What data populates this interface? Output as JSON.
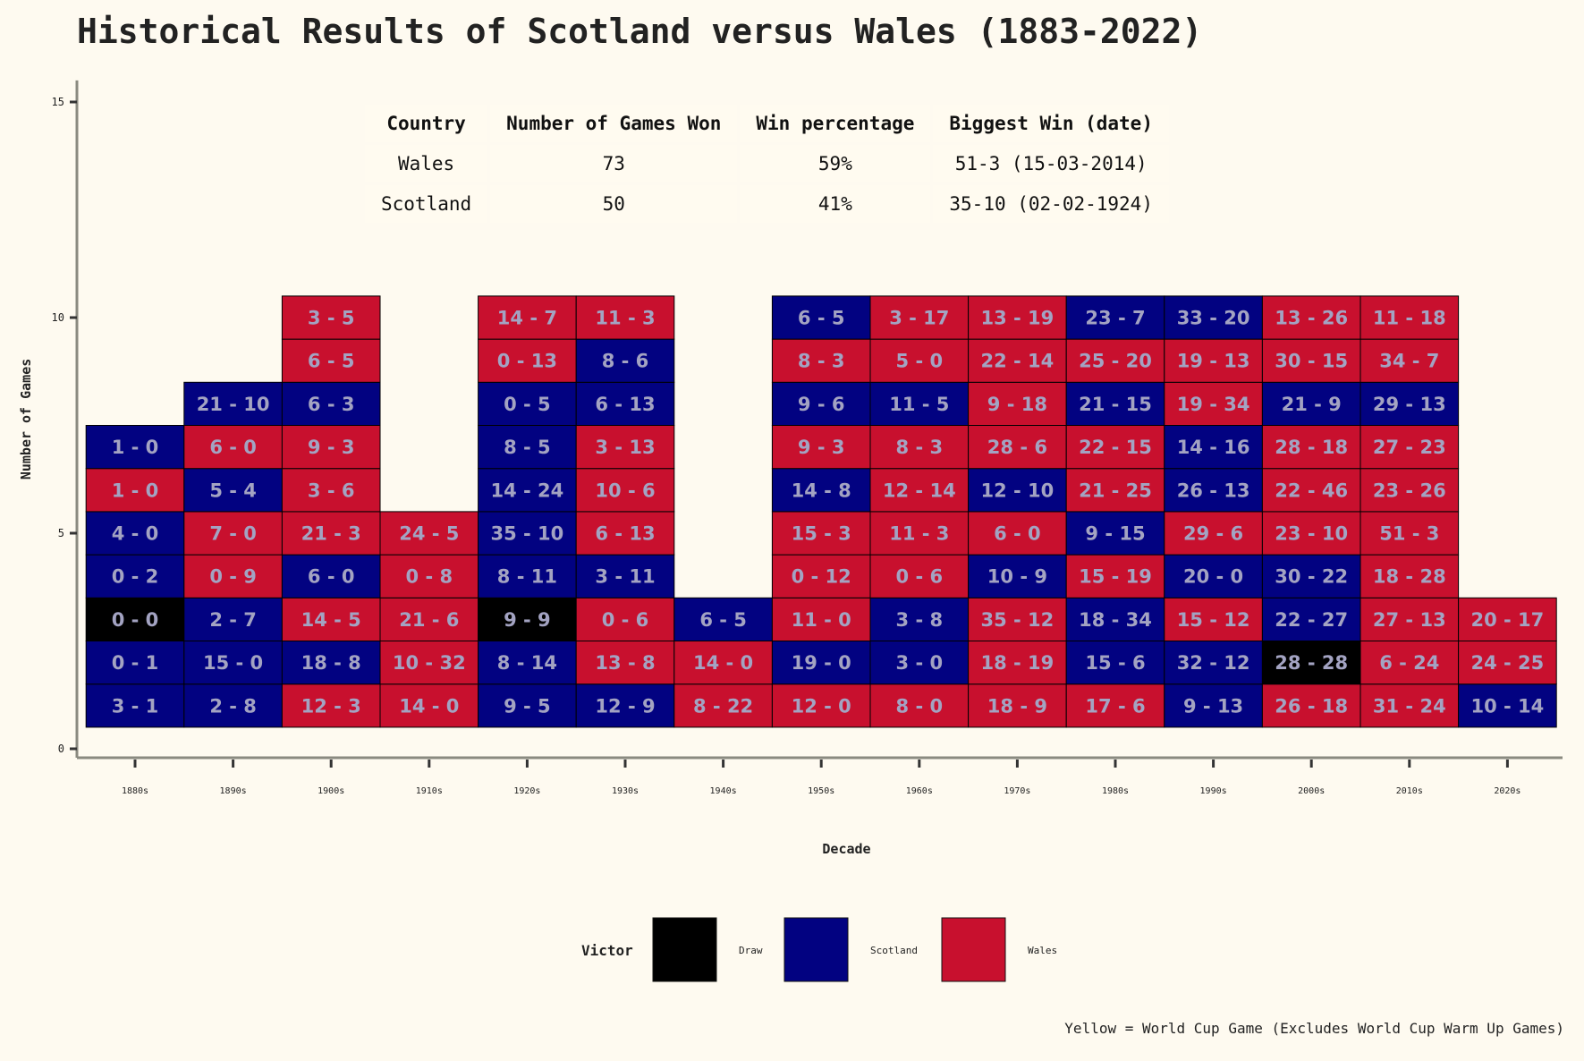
{
  "chart_data": {
    "type": "stacked-tile",
    "title": "Historical Results of Scotland versus Wales (1883-2022)",
    "xlabel": "Decade",
    "ylabel": "Number of Games",
    "ylim": [
      0,
      15.5
    ],
    "yticks": [
      0,
      5,
      10,
      15
    ],
    "categories": [
      "1880s",
      "1890s",
      "1900s",
      "1910s",
      "1920s",
      "1930s",
      "1940s",
      "1950s",
      "1960s",
      "1970s",
      "1980s",
      "1990s",
      "2000s",
      "2010s",
      "2020s"
    ],
    "colors": {
      "Draw": "#000000",
      "Scotland": "#020281",
      "Wales": "#c8102e",
      "label": "#a3a3c2",
      "background": "#fefaf0"
    },
    "columns": [
      {
        "decade": "1880s",
        "games": [
          [
            "3 - 1",
            "Scotland"
          ],
          [
            "0 - 1",
            "Scotland"
          ],
          [
            "0 - 0",
            "Draw"
          ],
          [
            "0 - 2",
            "Scotland"
          ],
          [
            "4 - 0",
            "Scotland"
          ],
          [
            "1 - 0",
            "Wales"
          ],
          [
            "1 - 0",
            "Scotland"
          ]
        ]
      },
      {
        "decade": "1890s",
        "games": [
          [
            "2 - 8",
            "Scotland"
          ],
          [
            "15 - 0",
            "Scotland"
          ],
          [
            "2 - 7",
            "Scotland"
          ],
          [
            "0 - 9",
            "Wales"
          ],
          [
            "7 - 0",
            "Wales"
          ],
          [
            "5 - 4",
            "Scotland"
          ],
          [
            "6 - 0",
            "Wales"
          ],
          [
            "21 - 10",
            "Scotland"
          ]
        ]
      },
      {
        "decade": "1900s",
        "games": [
          [
            "12 - 3",
            "Wales"
          ],
          [
            "18 - 8",
            "Scotland"
          ],
          [
            "14 - 5",
            "Wales"
          ],
          [
            "6 - 0",
            "Scotland"
          ],
          [
            "21 - 3",
            "Wales"
          ],
          [
            "3 - 6",
            "Wales"
          ],
          [
            "9 - 3",
            "Wales"
          ],
          [
            "6 - 3",
            "Scotland"
          ],
          [
            "6 - 5",
            "Wales"
          ],
          [
            "3 - 5",
            "Wales"
          ]
        ]
      },
      {
        "decade": "1910s",
        "games": [
          [
            "14 - 0",
            "Wales"
          ],
          [
            "10 - 32",
            "Wales"
          ],
          [
            "21 - 6",
            "Wales"
          ],
          [
            "0 - 8",
            "Wales"
          ],
          [
            "24 - 5",
            "Wales"
          ]
        ]
      },
      {
        "decade": "1920s",
        "games": [
          [
            "9 - 5",
            "Scotland"
          ],
          [
            "8 - 14",
            "Scotland"
          ],
          [
            "9 - 9",
            "Draw"
          ],
          [
            "8 - 11",
            "Scotland"
          ],
          [
            "35 - 10",
            "Scotland"
          ],
          [
            "14 - 24",
            "Scotland"
          ],
          [
            "8 - 5",
            "Scotland"
          ],
          [
            "0 - 5",
            "Scotland"
          ],
          [
            "0 - 13",
            "Wales"
          ],
          [
            "14 - 7",
            "Wales"
          ]
        ]
      },
      {
        "decade": "1930s",
        "games": [
          [
            "12 - 9",
            "Scotland"
          ],
          [
            "13 - 8",
            "Wales"
          ],
          [
            "0 - 6",
            "Wales"
          ],
          [
            "3 - 11",
            "Scotland"
          ],
          [
            "6 - 13",
            "Wales"
          ],
          [
            "10 - 6",
            "Wales"
          ],
          [
            "3 - 13",
            "Wales"
          ],
          [
            "6 - 13",
            "Scotland"
          ],
          [
            "8 - 6",
            "Scotland"
          ],
          [
            "11 - 3",
            "Wales"
          ]
        ]
      },
      {
        "decade": "1940s",
        "games": [
          [
            "8 - 22",
            "Wales"
          ],
          [
            "14 - 0",
            "Wales"
          ],
          [
            "6 - 5",
            "Scotland"
          ]
        ]
      },
      {
        "decade": "1950s",
        "games": [
          [
            "12 - 0",
            "Wales"
          ],
          [
            "19 - 0",
            "Scotland"
          ],
          [
            "11 - 0",
            "Wales"
          ],
          [
            "0 - 12",
            "Wales"
          ],
          [
            "15 - 3",
            "Wales"
          ],
          [
            "14 - 8",
            "Scotland"
          ],
          [
            "9 - 3",
            "Wales"
          ],
          [
            "9 - 6",
            "Scotland"
          ],
          [
            "8 - 3",
            "Wales"
          ],
          [
            "6 - 5",
            "Scotland"
          ]
        ]
      },
      {
        "decade": "1960s",
        "games": [
          [
            "8 - 0",
            "Wales"
          ],
          [
            "3 - 0",
            "Scotland"
          ],
          [
            "3 - 8",
            "Scotland"
          ],
          [
            "0 - 6",
            "Wales"
          ],
          [
            "11 - 3",
            "Wales"
          ],
          [
            "12 - 14",
            "Wales"
          ],
          [
            "8 - 3",
            "Wales"
          ],
          [
            "11 - 5",
            "Scotland"
          ],
          [
            "5 - 0",
            "Wales"
          ],
          [
            "3 - 17",
            "Wales"
          ]
        ]
      },
      {
        "decade": "1970s",
        "games": [
          [
            "18 - 9",
            "Wales"
          ],
          [
            "18 - 19",
            "Wales"
          ],
          [
            "35 - 12",
            "Wales"
          ],
          [
            "10 - 9",
            "Scotland"
          ],
          [
            "6 - 0",
            "Wales"
          ],
          [
            "12 - 10",
            "Scotland"
          ],
          [
            "28 - 6",
            "Wales"
          ],
          [
            "9 - 18",
            "Wales"
          ],
          [
            "22 - 14",
            "Wales"
          ],
          [
            "13 - 19",
            "Wales"
          ]
        ]
      },
      {
        "decade": "1980s",
        "games": [
          [
            "17 - 6",
            "Wales"
          ],
          [
            "15 - 6",
            "Scotland"
          ],
          [
            "18 - 34",
            "Scotland"
          ],
          [
            "15 - 19",
            "Wales"
          ],
          [
            "9 - 15",
            "Scotland"
          ],
          [
            "21 - 25",
            "Wales"
          ],
          [
            "22 - 15",
            "Wales"
          ],
          [
            "21 - 15",
            "Scotland"
          ],
          [
            "25 - 20",
            "Wales"
          ],
          [
            "23 - 7",
            "Scotland"
          ]
        ]
      },
      {
        "decade": "1990s",
        "games": [
          [
            "9 - 13",
            "Scotland"
          ],
          [
            "32 - 12",
            "Scotland"
          ],
          [
            "15 - 12",
            "Wales"
          ],
          [
            "20 - 0",
            "Scotland"
          ],
          [
            "29 - 6",
            "Wales"
          ],
          [
            "26 - 13",
            "Scotland"
          ],
          [
            "14 - 16",
            "Scotland"
          ],
          [
            "19 - 34",
            "Wales"
          ],
          [
            "19 - 13",
            "Wales"
          ],
          [
            "33 - 20",
            "Scotland"
          ]
        ]
      },
      {
        "decade": "2000s",
        "games": [
          [
            "26 - 18",
            "Wales"
          ],
          [
            "28 - 28",
            "Draw"
          ],
          [
            "22 - 27",
            "Scotland"
          ],
          [
            "30 - 22",
            "Scotland"
          ],
          [
            "23 - 10",
            "Wales"
          ],
          [
            "22 - 46",
            "Wales"
          ],
          [
            "28 - 18",
            "Wales"
          ],
          [
            "21 - 9",
            "Scotland"
          ],
          [
            "30 - 15",
            "Wales"
          ],
          [
            "13 - 26",
            "Wales"
          ]
        ]
      },
      {
        "decade": "2010s",
        "games": [
          [
            "31 - 24",
            "Wales"
          ],
          [
            "6 - 24",
            "Wales"
          ],
          [
            "27 - 13",
            "Wales"
          ],
          [
            "18 - 28",
            "Wales"
          ],
          [
            "51 - 3",
            "Wales"
          ],
          [
            "23 - 26",
            "Wales"
          ],
          [
            "27 - 23",
            "Wales"
          ],
          [
            "29 - 13",
            "Scotland"
          ],
          [
            "34 - 7",
            "Wales"
          ],
          [
            "11 - 18",
            "Wales"
          ]
        ]
      },
      {
        "decade": "2020s",
        "games": [
          [
            "10 - 14",
            "Scotland"
          ],
          [
            "24 - 25",
            "Wales"
          ],
          [
            "20 - 17",
            "Wales"
          ]
        ]
      }
    ],
    "legend": {
      "title": "Victor",
      "position": "bottom",
      "items": [
        {
          "label": "Draw",
          "key": "Draw"
        },
        {
          "label": "Scotland",
          "key": "Scotland"
        },
        {
          "label": "Wales",
          "key": "Wales"
        }
      ]
    },
    "caption": "Yellow = World Cup Game (Excludes World Cup Warm Up Games)",
    "table": {
      "headers": [
        "Country",
        "Number of Games Won",
        "Win percentage",
        "Biggest Win (date)"
      ],
      "rows": [
        [
          "Wales",
          "73",
          "59%",
          "51-3 (15-03-2014)"
        ],
        [
          "Scotland",
          "50",
          "41%",
          "35-10 (02-02-1924)"
        ]
      ]
    }
  }
}
